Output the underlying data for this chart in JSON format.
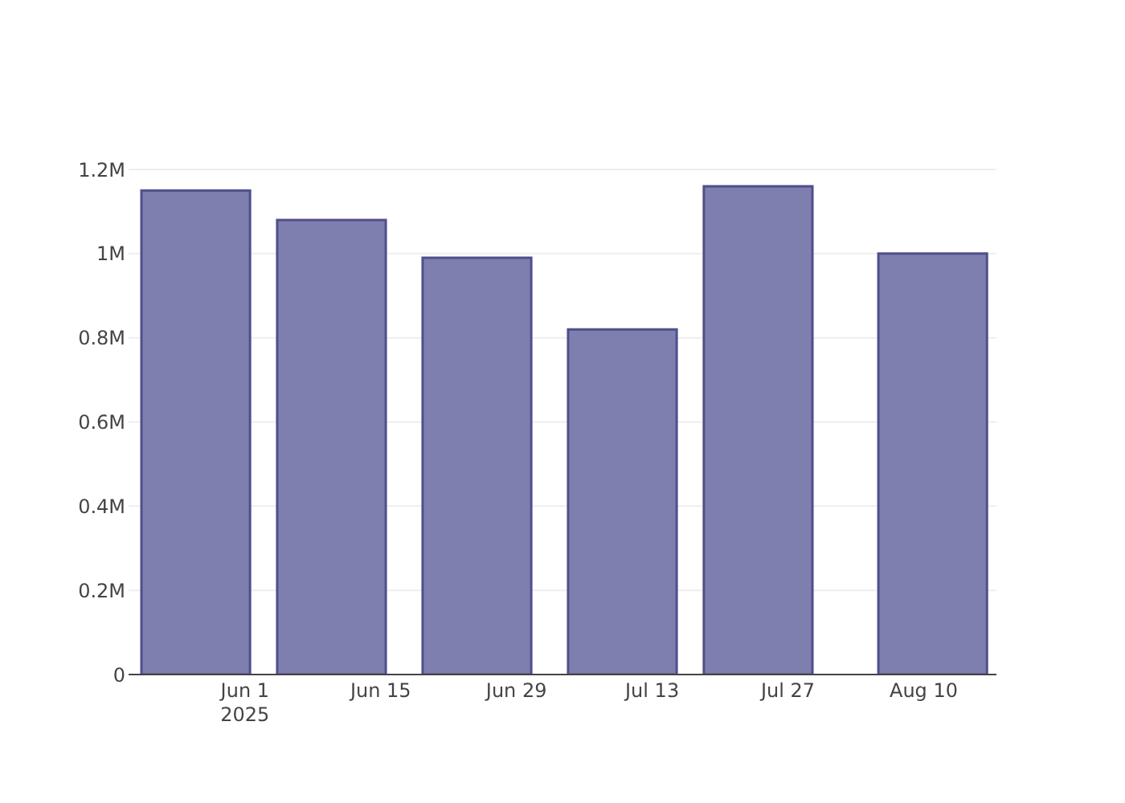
{
  "chart_data": {
    "type": "bar",
    "x": [
      "2025-05-27",
      "2025-06-10",
      "2025-06-25",
      "2025-07-10",
      "2025-07-24",
      "2025-08-11"
    ],
    "values": [
      1150000,
      1080000,
      990000,
      820000,
      1160000,
      1000000
    ],
    "color": "#7f7faf",
    "xlim": [
      "2025-05-20",
      "2025-08-17T12:00"
    ],
    "xticks": [
      {
        "value": "2025-06-01",
        "label": "Jun 1\n2025"
      },
      {
        "value": "2025-06-15",
        "label": "Jun 15"
      },
      {
        "value": "2025-06-29",
        "label": "Jun 29"
      },
      {
        "value": "2025-07-13",
        "label": "Jul 13"
      },
      {
        "value": "2025-07-27",
        "label": "Jul 27"
      },
      {
        "value": "2025-08-10",
        "label": "Aug 10"
      }
    ],
    "ylim": [
      0,
      1200000
    ],
    "yticks": [
      0,
      {
        "value": 200000,
        "label": "0.2M"
      },
      {
        "value": 400000,
        "label": "0.4M"
      },
      {
        "value": 600000,
        "label": "0.6M"
      },
      {
        "value": 800000,
        "label": "0.8M"
      },
      {
        "value": 1000000,
        "label": "1M"
      },
      {
        "value": 1200000,
        "label": "1.2M"
      }
    ],
    "grid": "y"
  }
}
